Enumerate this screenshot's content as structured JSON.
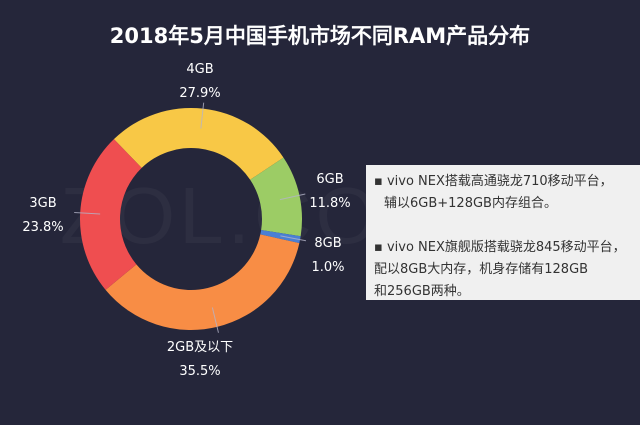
{
  "chart_data": {
    "type": "pie",
    "title": "2018年5月中国手机市场不同RAM产品分布",
    "donut": true,
    "slices": [
      {
        "label": "4GB",
        "value": 27.9,
        "value_label": "27.9%",
        "color": "#f8c846"
      },
      {
        "label": "6GB",
        "value": 11.8,
        "value_label": "11.8%",
        "color": "#9ccc65"
      },
      {
        "label": "8GB",
        "value": 1.0,
        "value_label": "1.0%",
        "color": "#4a7fd4"
      },
      {
        "label": "2GB及以下",
        "value": 35.5,
        "value_label": "35.5%",
        "color": "#f88d45"
      },
      {
        "label": "3GB",
        "value": 23.8,
        "value_label": "23.8%",
        "color": "#ef4e50"
      }
    ]
  },
  "watermark": "ZOL.CO",
  "note": {
    "bullets": [
      {
        "line1": "▪ vivo NEX搭载高通骁龙710移动平台，",
        "line2": "辅以6GB+128GB内存组合。"
      },
      {
        "line1": "▪ vivo NEX旗舰版搭载骁龙845移动平台，",
        "line2": "配以8GB大内存，机身存储有128GB",
        "line3": "和256GB两种。"
      }
    ]
  }
}
